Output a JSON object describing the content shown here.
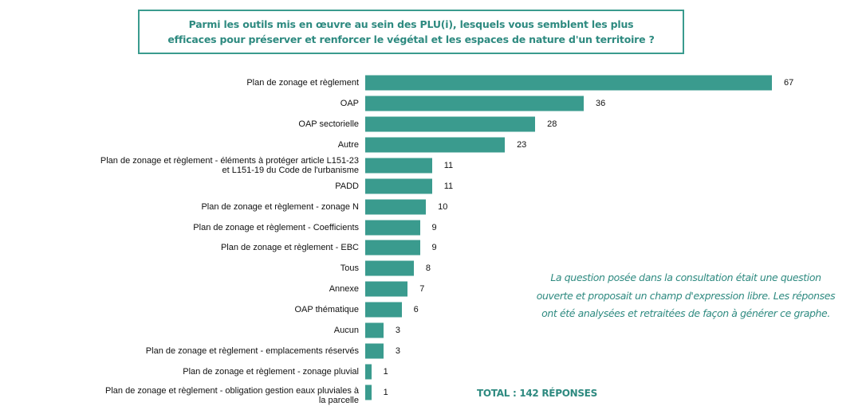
{
  "chart_data": {
    "type": "bar",
    "orientation": "horizontal",
    "title": [
      "Parmi les outils mis en œuvre au sein des PLU(i), lesquels vous semblent les plus",
      "efficaces pour préserver et renforcer le végétal et les espaces de nature d'un territoire ?"
    ],
    "categories": [
      "Plan de zonage et règlement",
      "OAP",
      "OAP sectorielle",
      "Autre",
      "Plan de zonage et règlement - éléments à protéger article L151-23\net L151-19 du Code de l'urbanisme",
      "PADD",
      "Plan de zonage et règlement - zonage N",
      "Plan de zonage et règlement - Coefficients",
      "Plan de zonage et règlement - EBC",
      "Tous",
      "Annexe",
      "OAP thématique",
      "Aucun",
      "Plan de zonage et règlement - emplacements réservés",
      "Plan de zonage et règlement - zonage pluvial",
      "Plan de zonage et règlement - obligation gestion eaux pluviales à\nla parcelle"
    ],
    "values": [
      67,
      36,
      28,
      23,
      11,
      11,
      10,
      9,
      9,
      8,
      7,
      6,
      3,
      3,
      1,
      1
    ],
    "color": "#3a9b8e",
    "annotations": [
      "La question posée dans la consultation était une question\nouverte et proposait un champ d'expression libre. Les réponses\nont été analysées et retraitées de façon à générer ce graphe.",
      "TOTAL : 142 RÉPONSES"
    ]
  }
}
